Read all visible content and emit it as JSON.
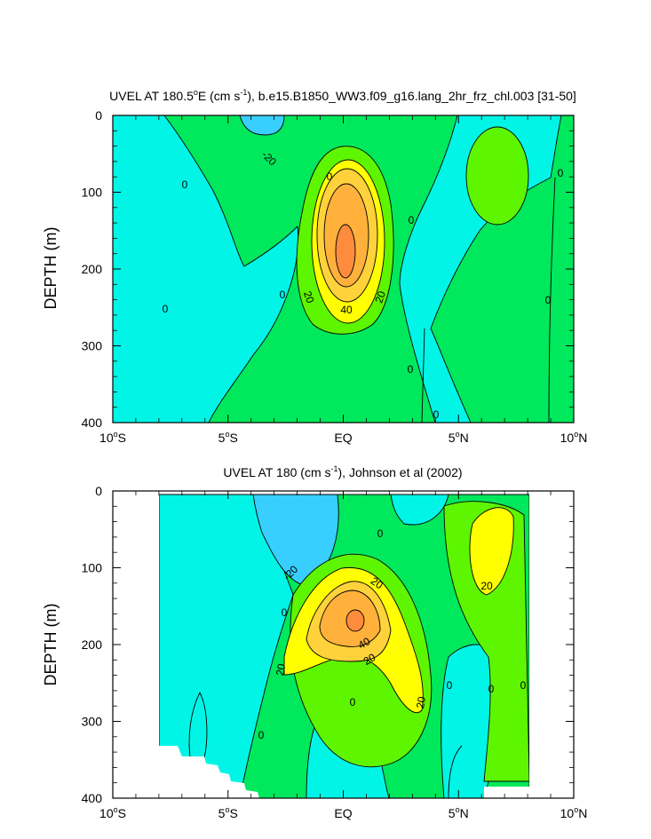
{
  "chart_data": [
    {
      "type": "contour",
      "title": "UVEL AT 180.5ºE (cm s⁻¹), b.e15.B1850_WW3.f09_g16.lang_2hr_frz_chl.003 [31-50]",
      "title_parts": {
        "pre": "UVEL AT 180.5",
        "sup1": "o",
        "mid": "E (cm s",
        "sup2": "-1",
        "post": "), b.e15.B1850_WW3.f09_g16.lang_2hr_frz_chl.003 [31-50]"
      },
      "xlabel": "",
      "ylabel": "DEPTH (m)",
      "xlim": [
        -10,
        10
      ],
      "ylim": [
        0,
        400
      ],
      "y_inverted": true,
      "xticks": [
        {
          "value": -10,
          "num": "10",
          "sup": "o",
          "hemi": "S"
        },
        {
          "value": -5,
          "num": "5",
          "sup": "o",
          "hemi": "S"
        },
        {
          "value": 0,
          "num": "",
          "sup": "",
          "hemi": "EQ"
        },
        {
          "value": 5,
          "num": "5",
          "sup": "o",
          "hemi": "N"
        },
        {
          "value": 10,
          "num": "10",
          "sup": "o",
          "hemi": "N"
        }
      ],
      "yticks": [
        "0",
        "100",
        "200",
        "300",
        "400"
      ],
      "contour_interval": 10,
      "contour_labels": [
        "-20",
        "0",
        "0",
        "0",
        "0",
        "0",
        "0",
        "0",
        "0",
        "0",
        "0",
        "20",
        "20",
        "40"
      ],
      "core_max_approx": {
        "lat": 0,
        "depth": 175,
        "value": 60
      }
    },
    {
      "type": "contour",
      "title": "UVEL AT 180 (cm s⁻¹), Johnson et al (2002)",
      "title_parts": {
        "pre": "UVEL AT 180 (cm s",
        "sup2": "-1",
        "post": "), Johnson et al (2002)"
      },
      "xlabel": "",
      "ylabel": "DEPTH (m)",
      "xlim": [
        -10,
        10
      ],
      "ylim": [
        0,
        400
      ],
      "y_inverted": true,
      "xticks": [
        {
          "value": -10,
          "num": "10",
          "sup": "o",
          "hemi": "S"
        },
        {
          "value": -5,
          "num": "5",
          "sup": "o",
          "hemi": "S"
        },
        {
          "value": 0,
          "num": "",
          "sup": "",
          "hemi": "EQ"
        },
        {
          "value": 5,
          "num": "5",
          "sup": "o",
          "hemi": "N"
        },
        {
          "value": 10,
          "num": "10",
          "sup": "o",
          "hemi": "N"
        }
      ],
      "yticks": [
        "0",
        "100",
        "200",
        "300",
        "400"
      ],
      "data_extent_lat": [
        -8,
        8
      ],
      "contour_interval": 10,
      "contour_labels": [
        "-20",
        "0",
        "0",
        "0",
        "0",
        "0",
        "0",
        "0",
        "20",
        "20",
        "20",
        "20",
        "20",
        "40"
      ],
      "core_max_approx": {
        "lat": 0.5,
        "depth": 165,
        "value": 60
      }
    }
  ],
  "colors": {
    "c_lt_neg20": "#38cfff",
    "c_neg20_0": "#00f5e6",
    "c_0_10": "#00e85c",
    "c_10_20": "#5ef500",
    "c_20_30": "#ffff00",
    "c_30_40": "#ffd23c",
    "c_40_50": "#ffb13c",
    "c_gt_50": "#ff8c3c"
  }
}
